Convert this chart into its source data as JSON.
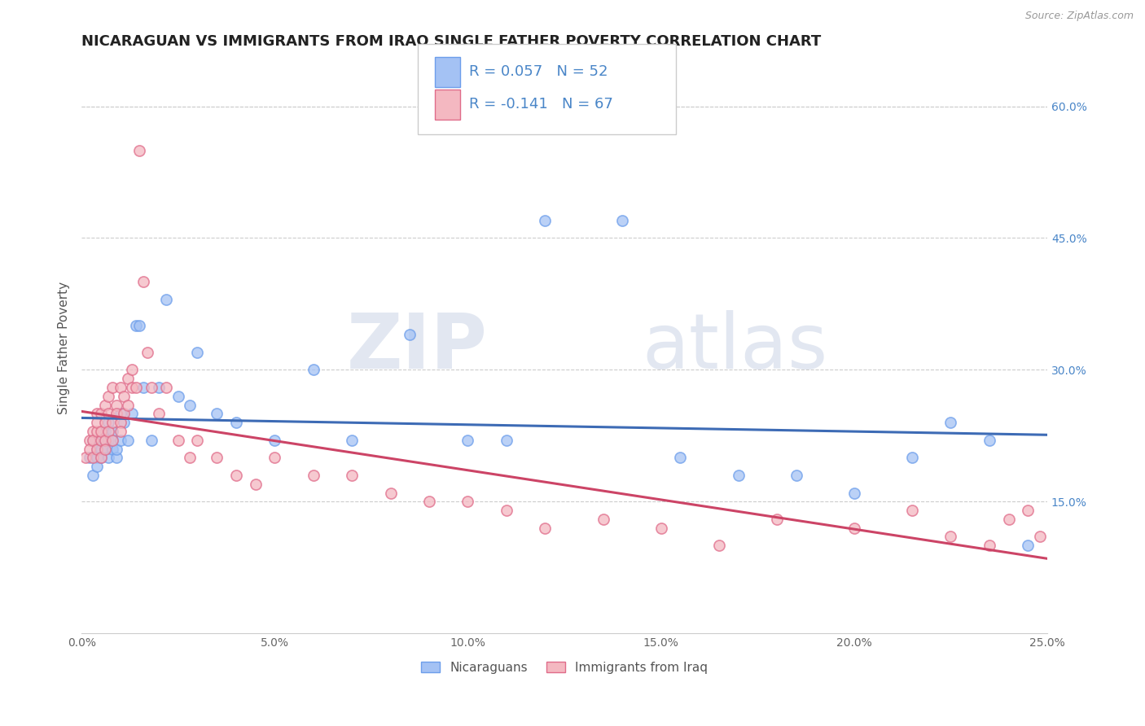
{
  "title": "NICARAGUAN VS IMMIGRANTS FROM IRAQ SINGLE FATHER POVERTY CORRELATION CHART",
  "source": "Source: ZipAtlas.com",
  "ylabel": "Single Father Poverty",
  "xlim": [
    0.0,
    0.25
  ],
  "ylim": [
    0.0,
    0.65
  ],
  "xticks": [
    0.0,
    0.05,
    0.1,
    0.15,
    0.2,
    0.25
  ],
  "xtick_labels": [
    "0.0%",
    "5.0%",
    "10.0%",
    "15.0%",
    "20.0%",
    "25.0%"
  ],
  "yticks_right": [
    0.15,
    0.3,
    0.45,
    0.6
  ],
  "ytick_labels_right": [
    "15.0%",
    "30.0%",
    "45.0%",
    "60.0%"
  ],
  "blue_color": "#a4c2f4",
  "pink_color": "#f4b8c1",
  "blue_edge_color": "#6d9eeb",
  "pink_edge_color": "#e06c8a",
  "blue_line_color": "#3d6bb5",
  "pink_line_color": "#cc4466",
  "title_fontsize": 13,
  "axis_label_fontsize": 11,
  "tick_fontsize": 10,
  "legend_label1": "Nicaraguans",
  "legend_label2": "Immigrants from Iraq",
  "watermark_zip": "ZIP",
  "watermark_atlas": "atlas",
  "blue_x": [
    0.002,
    0.003,
    0.003,
    0.004,
    0.004,
    0.004,
    0.005,
    0.005,
    0.005,
    0.006,
    0.006,
    0.006,
    0.007,
    0.007,
    0.007,
    0.008,
    0.008,
    0.008,
    0.009,
    0.009,
    0.01,
    0.01,
    0.011,
    0.012,
    0.013,
    0.014,
    0.015,
    0.016,
    0.018,
    0.02,
    0.022,
    0.025,
    0.028,
    0.03,
    0.035,
    0.04,
    0.05,
    0.06,
    0.07,
    0.085,
    0.1,
    0.11,
    0.12,
    0.14,
    0.155,
    0.17,
    0.185,
    0.2,
    0.215,
    0.225,
    0.235,
    0.245
  ],
  "blue_y": [
    0.2,
    0.22,
    0.18,
    0.21,
    0.2,
    0.19,
    0.22,
    0.21,
    0.2,
    0.22,
    0.21,
    0.23,
    0.2,
    0.22,
    0.24,
    0.21,
    0.23,
    0.22,
    0.2,
    0.21,
    0.22,
    0.25,
    0.24,
    0.22,
    0.25,
    0.35,
    0.35,
    0.28,
    0.22,
    0.28,
    0.38,
    0.27,
    0.26,
    0.32,
    0.25,
    0.24,
    0.22,
    0.3,
    0.22,
    0.34,
    0.22,
    0.22,
    0.47,
    0.47,
    0.2,
    0.18,
    0.18,
    0.16,
    0.2,
    0.24,
    0.22,
    0.1
  ],
  "pink_x": [
    0.001,
    0.002,
    0.002,
    0.003,
    0.003,
    0.003,
    0.004,
    0.004,
    0.004,
    0.004,
    0.005,
    0.005,
    0.005,
    0.005,
    0.006,
    0.006,
    0.006,
    0.006,
    0.007,
    0.007,
    0.007,
    0.008,
    0.008,
    0.008,
    0.009,
    0.009,
    0.01,
    0.01,
    0.01,
    0.011,
    0.011,
    0.012,
    0.012,
    0.013,
    0.013,
    0.014,
    0.015,
    0.016,
    0.017,
    0.018,
    0.02,
    0.022,
    0.025,
    0.028,
    0.03,
    0.035,
    0.04,
    0.045,
    0.05,
    0.06,
    0.07,
    0.08,
    0.09,
    0.1,
    0.11,
    0.12,
    0.135,
    0.15,
    0.165,
    0.18,
    0.2,
    0.215,
    0.225,
    0.235,
    0.24,
    0.245,
    0.248
  ],
  "pink_y": [
    0.2,
    0.22,
    0.21,
    0.23,
    0.2,
    0.22,
    0.25,
    0.23,
    0.24,
    0.21,
    0.22,
    0.2,
    0.23,
    0.25,
    0.22,
    0.24,
    0.21,
    0.26,
    0.23,
    0.27,
    0.25,
    0.24,
    0.28,
    0.22,
    0.26,
    0.25,
    0.24,
    0.28,
    0.23,
    0.27,
    0.25,
    0.26,
    0.29,
    0.28,
    0.3,
    0.28,
    0.55,
    0.4,
    0.32,
    0.28,
    0.25,
    0.28,
    0.22,
    0.2,
    0.22,
    0.2,
    0.18,
    0.17,
    0.2,
    0.18,
    0.18,
    0.16,
    0.15,
    0.15,
    0.14,
    0.12,
    0.13,
    0.12,
    0.1,
    0.13,
    0.12,
    0.14,
    0.11,
    0.1,
    0.13,
    0.14,
    0.11
  ]
}
